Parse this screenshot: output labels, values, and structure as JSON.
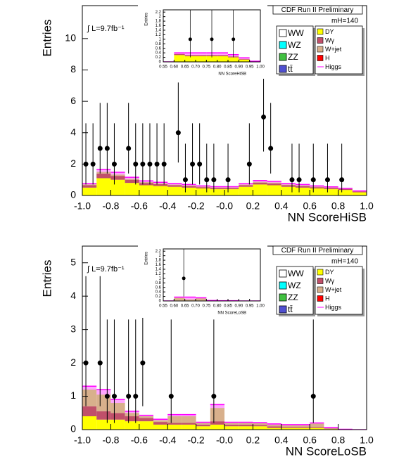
{
  "chart_data": [
    {
      "type": "stacked_histogram",
      "title": "CDF Run II Preliminary",
      "luminosity_label": "∫ L=9.7fb⁻¹",
      "mass_label": "mH=140",
      "x_label": "NN ScoreHiSB",
      "y_label": "Entries",
      "legend_position": "top-right",
      "bins": [
        -1,
        -0.9,
        -0.8,
        -0.7,
        -0.6,
        -0.5,
        -0.4,
        -0.3,
        -0.2,
        -0.1,
        0,
        0.1,
        0.2,
        0.3,
        0.4,
        0.5,
        0.6,
        0.7,
        0.8,
        0.9,
        1
      ],
      "xlim": [
        -1,
        1
      ],
      "ylim": [
        0,
        12.1
      ],
      "xticks": [
        {
          "value": -1,
          "label": "-1.0"
        },
        -0.8,
        -0.6,
        -0.4,
        -0.2,
        {
          "value": 0,
          "label": "-0.0"
        },
        0.2,
        0.4,
        0.6,
        0.8,
        {
          "value": 1,
          "label": "1.0"
        }
      ],
      "yticks": [
        0,
        2,
        4,
        6,
        8,
        10
      ],
      "series": [
        {
          "name": "WW",
          "color": "#ffffff",
          "style": "fill",
          "values": [
            0,
            0,
            0,
            0,
            0,
            0,
            0,
            0,
            0,
            0,
            0,
            0,
            0,
            0,
            0,
            0,
            0,
            0,
            0,
            0
          ]
        },
        {
          "name": "WZ",
          "color": "#00ffff",
          "style": "fill",
          "values": [
            0,
            0,
            0,
            0,
            0,
            0,
            0,
            0,
            0,
            0,
            0,
            0,
            0,
            0,
            0,
            0,
            0,
            0,
            0,
            0
          ]
        },
        {
          "name": "ZZ",
          "color": "#40c040",
          "style": "fill",
          "values": [
            0,
            0,
            0,
            0,
            0,
            0,
            0,
            0,
            0,
            0,
            0,
            0,
            0,
            0,
            0,
            0,
            0,
            0,
            0,
            0
          ]
        },
        {
          "name": "tt̄",
          "color": "#5050d0",
          "style": "fill",
          "values": [
            0,
            0,
            0,
            0,
            0,
            0,
            0,
            0,
            0,
            0,
            0,
            0,
            0,
            0,
            0,
            0,
            0,
            0,
            0,
            0
          ]
        },
        {
          "name": "DY",
          "color": "#ffff00",
          "style": "fill",
          "values": [
            0.5,
            1.1,
            1.0,
            0.8,
            0.65,
            0.6,
            0.55,
            0.5,
            0.45,
            0.4,
            0.4,
            0.55,
            0.7,
            0.65,
            0.55,
            0.5,
            0.45,
            0.4,
            0.35,
            0.2
          ]
        },
        {
          "name": "Wγ",
          "color": "#c0506a",
          "style": "fill",
          "values": [
            0.15,
            0.3,
            0.25,
            0.2,
            0.15,
            0.12,
            0.1,
            0.1,
            0.08,
            0.08,
            0.08,
            0.1,
            0.12,
            0.12,
            0.1,
            0.1,
            0.08,
            0.08,
            0.06,
            0.05
          ]
        },
        {
          "name": "W+jet",
          "color": "#d8b08c",
          "style": "fill",
          "values": [
            0.05,
            0.1,
            0.08,
            0.06,
            0.05,
            0.05,
            0.04,
            0.04,
            0.03,
            0.03,
            0.03,
            0.04,
            0.05,
            0.05,
            0.04,
            0.04,
            0.03,
            0.03,
            0.02,
            0.02
          ]
        },
        {
          "name": "H",
          "color": "#ff0000",
          "style": "fill",
          "values": [
            0,
            0,
            0,
            0,
            0,
            0,
            0,
            0,
            0,
            0,
            0,
            0,
            0,
            0,
            0,
            0,
            0,
            0,
            0,
            0
          ]
        },
        {
          "name": "Higgs",
          "color": "#ff00ff",
          "style": "line",
          "values": [
            0.05,
            0.15,
            0.15,
            0.1,
            0.08,
            0.07,
            0.07,
            0.06,
            0.05,
            0.05,
            0.05,
            0.06,
            0.08,
            0.08,
            0.07,
            0.06,
            0.05,
            0.04,
            0.03,
            0.02
          ]
        }
      ],
      "points": {
        "color": "#000000",
        "x": [
          -0.975,
          -0.925,
          -0.875,
          -0.825,
          -0.775,
          -0.675,
          -0.625,
          -0.575,
          -0.525,
          -0.475,
          -0.425,
          -0.325,
          -0.275,
          -0.225,
          -0.175,
          -0.125,
          -0.075,
          0.025,
          0.175,
          0.275,
          0.325,
          0.475,
          0.525,
          0.625,
          0.725,
          0.825
        ],
        "y": [
          2,
          2,
          3,
          3,
          2,
          3,
          2,
          2,
          2,
          2,
          2,
          4,
          1,
          2,
          2,
          1,
          1,
          1,
          2,
          5,
          3,
          1,
          1,
          1,
          1,
          1
        ],
        "yerr_low": [
          1.3,
          1.3,
          1.6,
          1.6,
          1.3,
          1.6,
          1.3,
          1.3,
          1.3,
          1.3,
          1.3,
          1.9,
          0.8,
          1.3,
          1.3,
          0.8,
          0.8,
          0.8,
          1.3,
          2.2,
          1.6,
          0.8,
          0.8,
          0.8,
          0.8,
          0.8
        ],
        "yerr_high": [
          2.6,
          2.6,
          2.9,
          2.9,
          2.6,
          2.9,
          2.6,
          2.6,
          2.6,
          2.6,
          2.6,
          3.2,
          2.3,
          2.6,
          2.6,
          2.3,
          2.3,
          2.3,
          2.6,
          3.4,
          2.9,
          2.3,
          2.3,
          2.3,
          2.3,
          2.3
        ]
      }
    },
    {
      "type": "stacked_histogram",
      "x_label": "NN ScoreHiSB",
      "y_label": "Entries",
      "bins": [
        0.55,
        0.6,
        0.65,
        0.7,
        0.75,
        0.8,
        0.85,
        0.9,
        0.95,
        1
      ],
      "xlim": [
        0.55,
        1
      ],
      "ylim": [
        0,
        2.3
      ],
      "xticks": [
        0.55,
        {
          "value": 0.6,
          "label": "0.60"
        },
        0.65,
        {
          "value": 0.7,
          "label": "0.70"
        },
        0.75,
        {
          "value": 0.8,
          "label": "0.80"
        },
        0.85,
        {
          "value": 0.9,
          "label": "0.90"
        },
        0.95,
        {
          "value": 1,
          "label": "1.00"
        }
      ],
      "yticks": [
        0,
        0.2,
        0.4,
        0.6,
        0.8,
        1,
        1.2,
        1.4,
        1.6,
        1.8,
        2,
        2.2
      ],
      "series": [
        {
          "color": "#ffff00",
          "style": "fill",
          "values": [
            0,
            0.3,
            0.25,
            0.25,
            0.25,
            0.25,
            0.2,
            0.1,
            0.02
          ]
        },
        {
          "color": "#c0506a",
          "style": "fill",
          "values": [
            0,
            0.05,
            0.05,
            0.05,
            0.05,
            0.05,
            0.04,
            0.03,
            0
          ]
        },
        {
          "color": "#ff00ff",
          "style": "line",
          "values": [
            0,
            0.05,
            0.1,
            0.1,
            0.1,
            0.1,
            0.08,
            0.05,
            0.01
          ]
        }
      ],
      "points": {
        "color": "#000000",
        "x": [
          0.675,
          0.775,
          0.875
        ],
        "y": [
          1,
          1,
          1
        ],
        "yerr_low": [
          0.8,
          0.8,
          0.8
        ],
        "yerr_high": [
          2.3,
          2.3,
          2.3
        ]
      }
    },
    {
      "type": "stacked_histogram",
      "title": "CDF Run II Preliminary",
      "luminosity_label": "∫ L=9.7fb⁻¹",
      "mass_label": "mH=140",
      "x_label": "NN ScoreLoSB",
      "y_label": "Entries",
      "legend_position": "top-right",
      "bins": [
        -1,
        -0.9,
        -0.8,
        -0.7,
        -0.6,
        -0.5,
        -0.4,
        -0.3,
        -0.2,
        -0.1,
        0,
        0.1,
        0.2,
        0.3,
        0.4,
        0.5,
        0.6,
        0.7,
        0.8,
        0.9,
        1
      ],
      "xlim": [
        -1,
        1
      ],
      "ylim": [
        0,
        5.5
      ],
      "xticks": [
        {
          "value": -1,
          "label": "-1.0"
        },
        -0.8,
        -0.6,
        -0.4,
        -0.2,
        {
          "value": 0,
          "label": "-0.0"
        },
        0.2,
        0.4,
        0.6,
        0.8,
        {
          "value": 1,
          "label": "1.0"
        }
      ],
      "yticks": [
        0,
        1,
        2,
        3,
        4,
        5
      ],
      "series": [
        {
          "name": "WW",
          "color": "#ffffff",
          "style": "fill",
          "values": [
            0,
            0,
            0,
            0,
            0,
            0,
            0,
            0,
            0,
            0,
            0,
            0,
            0,
            0,
            0,
            0,
            0,
            0,
            0,
            0
          ]
        },
        {
          "name": "WZ",
          "color": "#00ffff",
          "style": "fill",
          "values": [
            0,
            0,
            0,
            0,
            0,
            0,
            0,
            0,
            0,
            0,
            0,
            0,
            0,
            0,
            0,
            0,
            0,
            0,
            0,
            0
          ]
        },
        {
          "name": "ZZ",
          "color": "#40c040",
          "style": "fill",
          "values": [
            0,
            0,
            0,
            0,
            0,
            0,
            0,
            0,
            0,
            0,
            0,
            0,
            0,
            0,
            0,
            0,
            0,
            0,
            0,
            0
          ]
        },
        {
          "name": "tt̄",
          "color": "#5050d0",
          "style": "fill",
          "values": [
            0,
            0,
            0,
            0,
            0,
            0,
            0,
            0,
            0,
            0,
            0,
            0,
            0,
            0,
            0,
            0,
            0,
            0,
            0,
            0
          ]
        },
        {
          "name": "DY",
          "color": "#ffff00",
          "style": "fill",
          "values": [
            0.4,
            0.3,
            0.3,
            0.25,
            0.25,
            0.15,
            0.15,
            0.15,
            0.1,
            0.15,
            0.1,
            0.1,
            0.1,
            0.05,
            0.05,
            0.05,
            0.05,
            0.02,
            0.01,
            0
          ]
        },
        {
          "name": "Wγ",
          "color": "#c0506a",
          "style": "fill",
          "values": [
            0.3,
            0.25,
            0.2,
            0.15,
            0.1,
            0.08,
            0.05,
            0.05,
            0.05,
            0.1,
            0.05,
            0.05,
            0.04,
            0.05,
            0.03,
            0.03,
            0.03,
            0.01,
            0,
            0
          ]
        },
        {
          "name": "W+jet",
          "color": "#d8b08c",
          "style": "fill",
          "values": [
            0.5,
            0.5,
            0.3,
            0.1,
            0.05,
            0.05,
            0.2,
            0.2,
            0.05,
            0.4,
            0.05,
            0.05,
            0.05,
            0.05,
            0.05,
            0.05,
            0.1,
            0.02,
            0,
            0
          ]
        },
        {
          "name": "H",
          "color": "#ff0000",
          "style": "fill",
          "values": [
            0,
            0,
            0,
            0,
            0,
            0,
            0,
            0,
            0,
            0,
            0,
            0,
            0,
            0,
            0,
            0,
            0,
            0,
            0,
            0
          ]
        },
        {
          "name": "Higgs",
          "color": "#ff00ff",
          "style": "line",
          "values": [
            0.1,
            0.15,
            0.1,
            0.05,
            0.03,
            0.03,
            0.05,
            0.05,
            0.02,
            0.1,
            0.02,
            0.02,
            0.02,
            0.02,
            0.02,
            0.02,
            0.02,
            0.01,
            0,
            0
          ]
        }
      ],
      "points": {
        "color": "#000000",
        "x": [
          -0.975,
          -0.875,
          -0.825,
          -0.775,
          -0.675,
          -0.625,
          -0.575,
          -0.375,
          -0.075,
          0.625
        ],
        "y": [
          2,
          2,
          1,
          1,
          1,
          1,
          2,
          1,
          1,
          1
        ],
        "yerr_low": [
          1.3,
          1.3,
          0.8,
          0.8,
          0.8,
          0.8,
          1.3,
          0.8,
          0.8,
          0.8
        ],
        "yerr_high": [
          2.6,
          2.6,
          2.3,
          2.3,
          2.3,
          2.3,
          2.6,
          2.3,
          2.3,
          2.3
        ]
      }
    },
    {
      "type": "stacked_histogram",
      "x_label": "NN ScoreLoSB",
      "y_label": "Entries",
      "bins": [
        0.55,
        0.6,
        0.65,
        0.7,
        0.75,
        0.8,
        0.85,
        0.9,
        0.95,
        1
      ],
      "xlim": [
        0.55,
        1
      ],
      "ylim": [
        0,
        2.3
      ],
      "xticks": [
        0.55,
        {
          "value": 0.6,
          "label": "0.60"
        },
        0.65,
        {
          "value": 0.7,
          "label": "0.70"
        },
        0.75,
        {
          "value": 0.8,
          "label": "0.80"
        },
        0.85,
        {
          "value": 0.9,
          "label": "0.90"
        },
        0.95,
        {
          "value": 1,
          "label": "1.00"
        }
      ],
      "yticks": [
        0,
        0.2,
        0.4,
        0.6,
        0.8,
        1,
        1.2,
        1.4,
        1.6,
        1.8,
        2,
        2.2
      ],
      "series": [
        {
          "color": "#ffff00",
          "style": "fill",
          "values": [
            0,
            0.02,
            0.02,
            0.02,
            0.01,
            0.01,
            0.01,
            0,
            0
          ]
        },
        {
          "color": "#d8b08c",
          "style": "fill",
          "values": [
            0,
            0.12,
            0.05,
            0.1,
            0,
            0,
            0,
            0,
            0
          ]
        },
        {
          "color": "#ff00ff",
          "style": "line",
          "values": [
            0,
            0.03,
            0.1,
            0.02,
            0.01,
            0,
            0,
            0,
            0
          ]
        }
      ],
      "points": {
        "color": "#000000",
        "x": [
          0.645
        ],
        "y": [
          1
        ],
        "yerr_low": [
          0.8
        ],
        "yerr_high": [
          2.3
        ]
      }
    }
  ]
}
